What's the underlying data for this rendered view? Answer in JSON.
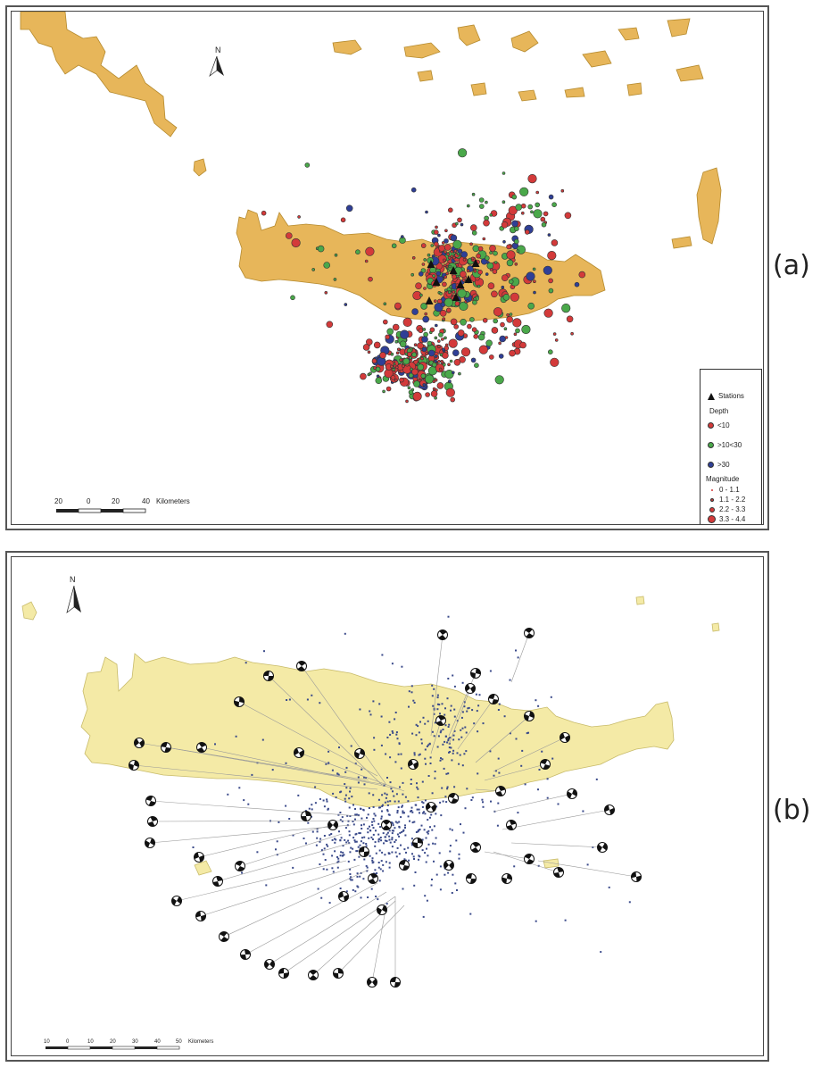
{
  "panel_a": {
    "label": "(a)",
    "north": "N",
    "legend": {
      "stations": "Stations",
      "depth_title": "Depth",
      "depth_items": [
        {
          "label": "<10",
          "color": "#d33a3a"
        },
        {
          "label": ">10<30",
          "color": "#4aa84a"
        },
        {
          "label": ">30",
          "color": "#2f3f96"
        }
      ],
      "magnitude_title": "Magnitude",
      "magnitude_items": [
        "0 - 1.1",
        "1.1 - 2.2",
        "2.2 - 3.3",
        "3.3 - 4.4"
      ]
    },
    "scale": {
      "ticks": [
        "20",
        "0",
        "20",
        "40"
      ],
      "unit": "Kilometers"
    },
    "colors": {
      "land": "#e7b65a",
      "land_edge": "#b58a2e"
    }
  },
  "panel_b": {
    "label": "(b)",
    "north": "N",
    "scale": {
      "ticks": [
        "10",
        "0",
        "10",
        "20",
        "30",
        "40",
        "50"
      ],
      "unit": "Kilometers"
    },
    "colors": {
      "land": "#f4eaa6",
      "land_edge": "#c8bb6a",
      "event": "#3a4a8a"
    }
  }
}
